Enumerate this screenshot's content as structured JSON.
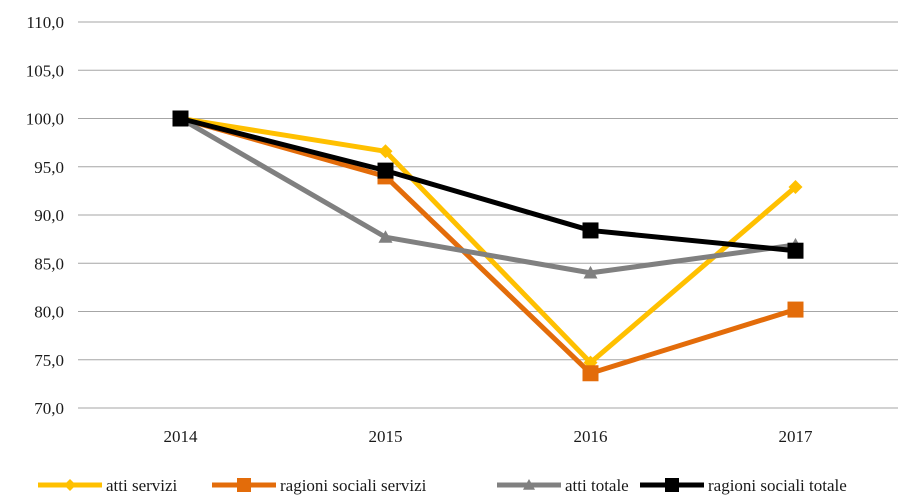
{
  "chart_data": {
    "type": "line",
    "title": "",
    "xlabel": "",
    "ylabel": "",
    "categories": [
      "2014",
      "2015",
      "2016",
      "2017"
    ],
    "ylim": [
      70,
      110
    ],
    "yticks": [
      "70,0",
      "75,0",
      "80,0",
      "85,0",
      "90,0",
      "95,0",
      "100,0",
      "105,0",
      "110,0"
    ],
    "grid": "horizontal",
    "legend_position": "bottom",
    "series": [
      {
        "name": "atti servizi",
        "values": [
          100.0,
          96.6,
          74.7,
          92.9
        ],
        "color": "#FFC000",
        "marker": "diamond"
      },
      {
        "name": "ragioni sociali servizi",
        "values": [
          100.0,
          94.0,
          73.6,
          80.2
        ],
        "color": "#E36C0A",
        "marker": "square"
      },
      {
        "name": "atti totale",
        "values": [
          100.0,
          87.7,
          84.0,
          86.9
        ],
        "color": "#808080",
        "marker": "triangle"
      },
      {
        "name": "ragioni sociali totale",
        "values": [
          100.0,
          94.6,
          88.4,
          86.3
        ],
        "color": "#000000",
        "marker": "square"
      }
    ]
  }
}
